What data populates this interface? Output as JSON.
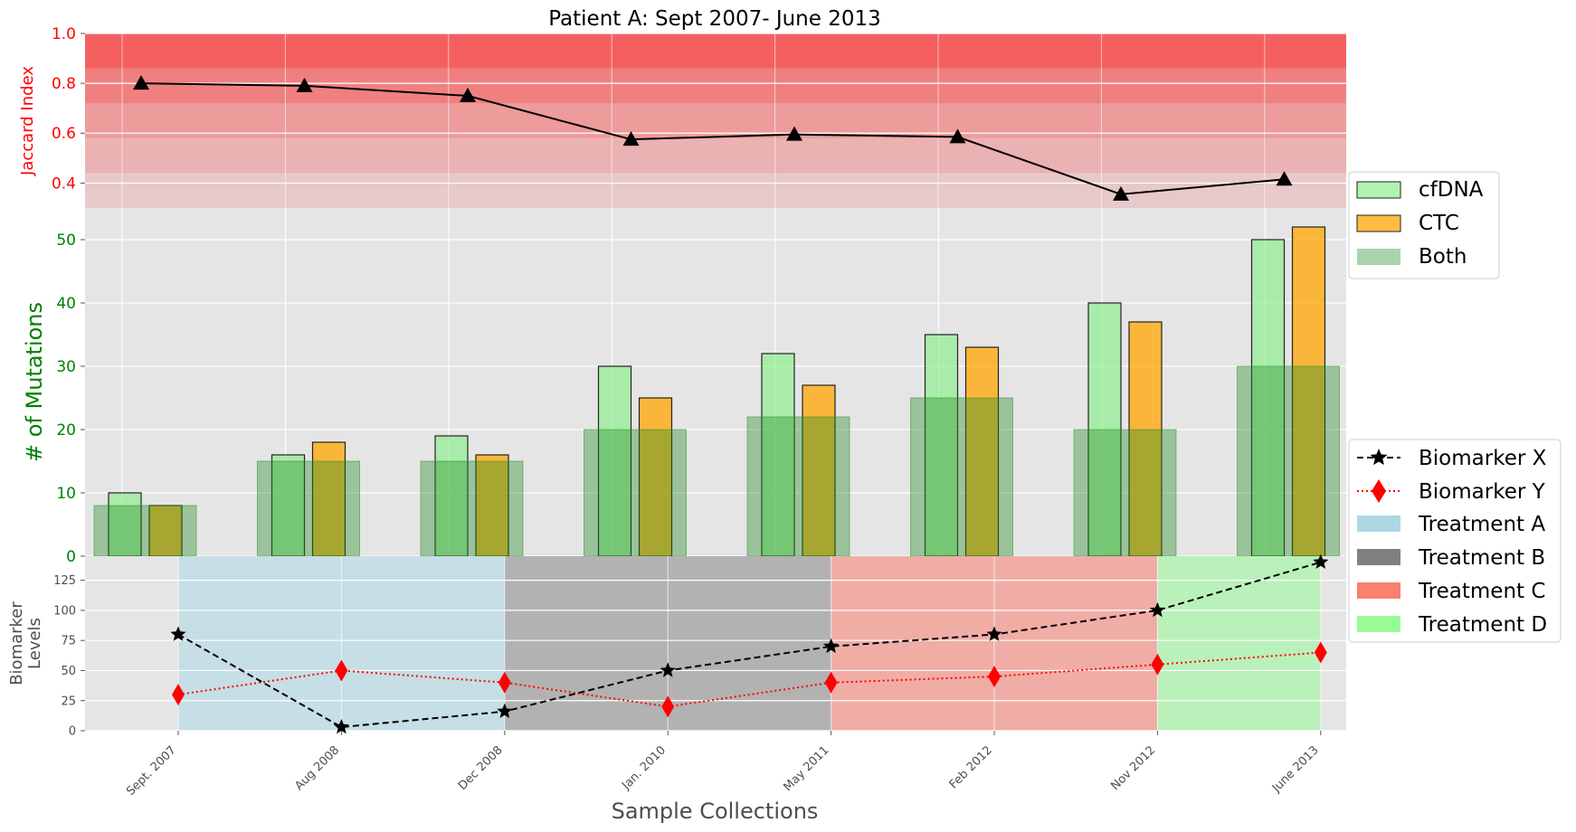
{
  "chart_data": {
    "title": "Patient A: Sept 2007- June 2013",
    "xlabel": "Sample Collections",
    "categories": [
      "Sept. 2007",
      "Aug 2008",
      "Dec 2008",
      "Jan. 2010",
      "May 2011",
      "Feb 2012",
      "Nov 2012",
      "June 2013"
    ],
    "panels": [
      {
        "type": "line",
        "ylabel": "Jaccard Index",
        "ylabel_color": "#ff0000",
        "ylim": [
          0.3,
          1.0
        ],
        "yticks": [
          "0.4",
          "0.6",
          "0.8",
          "1.0"
        ],
        "series": [
          {
            "values": [
              0.8,
              0.79,
              0.75,
              0.575,
              0.595,
              0.585,
              0.355,
              0.415
            ],
            "marker": "triangle",
            "color": "#000000"
          }
        ],
        "background_bands_color": "#ff0000"
      },
      {
        "type": "bar",
        "ylabel": "# of Mutations",
        "ylabel_color": "#008000",
        "ylim": [
          0,
          55
        ],
        "yticks": [
          "0",
          "10",
          "20",
          "30",
          "40",
          "50"
        ],
        "series": [
          {
            "name": "cfDNA",
            "values": [
              10,
              16,
              19,
              30,
              32,
              35,
              40,
              50
            ],
            "color": "#90ee90"
          },
          {
            "name": "CTC",
            "values": [
              8,
              18,
              16,
              25,
              27,
              33,
              37,
              52
            ],
            "color": "#ffa500"
          },
          {
            "name": "Both",
            "values": [
              8,
              15,
              15,
              20,
              22,
              25,
              20,
              30
            ],
            "color": "#228b22"
          }
        ]
      },
      {
        "type": "line",
        "ylabel": "Biomarker Levels",
        "ylim": [
          0,
          145
        ],
        "yticks": [
          "0",
          "25",
          "50",
          "75",
          "100",
          "125"
        ],
        "series": [
          {
            "name": "Biomarker X",
            "values": [
              80,
              3,
              16,
              50,
              70,
              80,
              100,
              140
            ],
            "color": "#000000",
            "marker": "star",
            "style": "dashed"
          },
          {
            "name": "Biomarker Y",
            "values": [
              30,
              50,
              40,
              20,
              40,
              45,
              55,
              65
            ],
            "color": "#ff0000",
            "marker": "diamond",
            "style": "dotted"
          }
        ],
        "treatments": [
          {
            "name": "Treatment A",
            "start": "Sept. 2007",
            "end": "Dec 2008",
            "color": "#add8e6"
          },
          {
            "name": "Treatment B",
            "start": "Dec 2008",
            "end": "May 2011",
            "color": "#808080"
          },
          {
            "name": "Treatment C",
            "start": "May 2011",
            "end": "Nov 2012",
            "color": "#fa8072"
          },
          {
            "name": "Treatment D",
            "start": "Nov 2012",
            "end": "June 2013",
            "color": "#98fb98"
          }
        ]
      }
    ]
  }
}
